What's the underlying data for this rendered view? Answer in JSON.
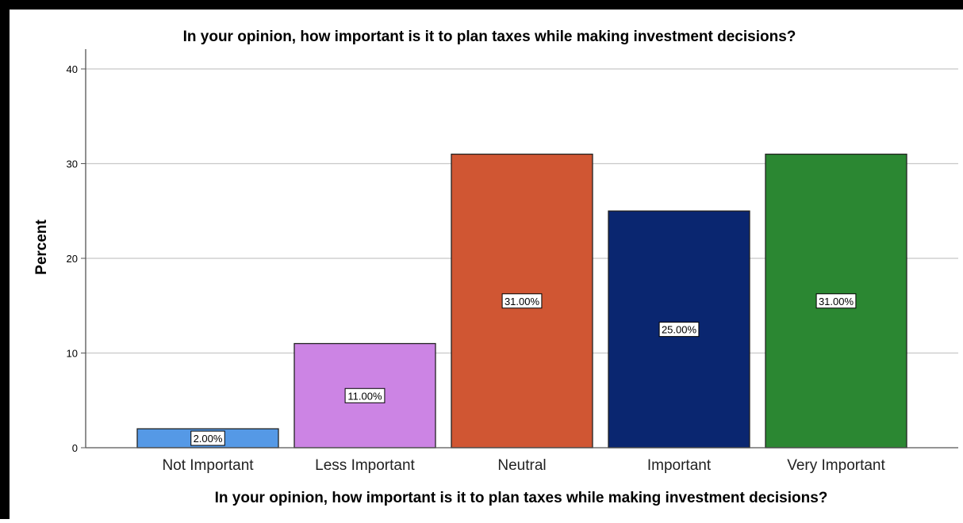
{
  "chart_data": {
    "type": "bar",
    "title": "In your opinion, how important is it to plan taxes while making investment decisions?",
    "xlabel": "In your opinion, how important is it to plan taxes while making investment decisions?",
    "ylabel": "Percent",
    "categories": [
      "Not Important",
      "Less Important",
      "Neutral",
      "Important",
      "Very Important"
    ],
    "values": [
      2,
      11,
      31,
      25,
      31
    ],
    "data_labels": [
      "2.00%",
      "11.00%",
      "31.00%",
      "25.00%",
      "31.00%"
    ],
    "colors": [
      "#5599e6",
      "#cc84e4",
      "#d05633",
      "#0a2670",
      "#2b8732"
    ],
    "ylim": [
      0,
      40
    ],
    "yticks": [
      0,
      10,
      20,
      30,
      40
    ],
    "grid": true,
    "legend": "none"
  }
}
